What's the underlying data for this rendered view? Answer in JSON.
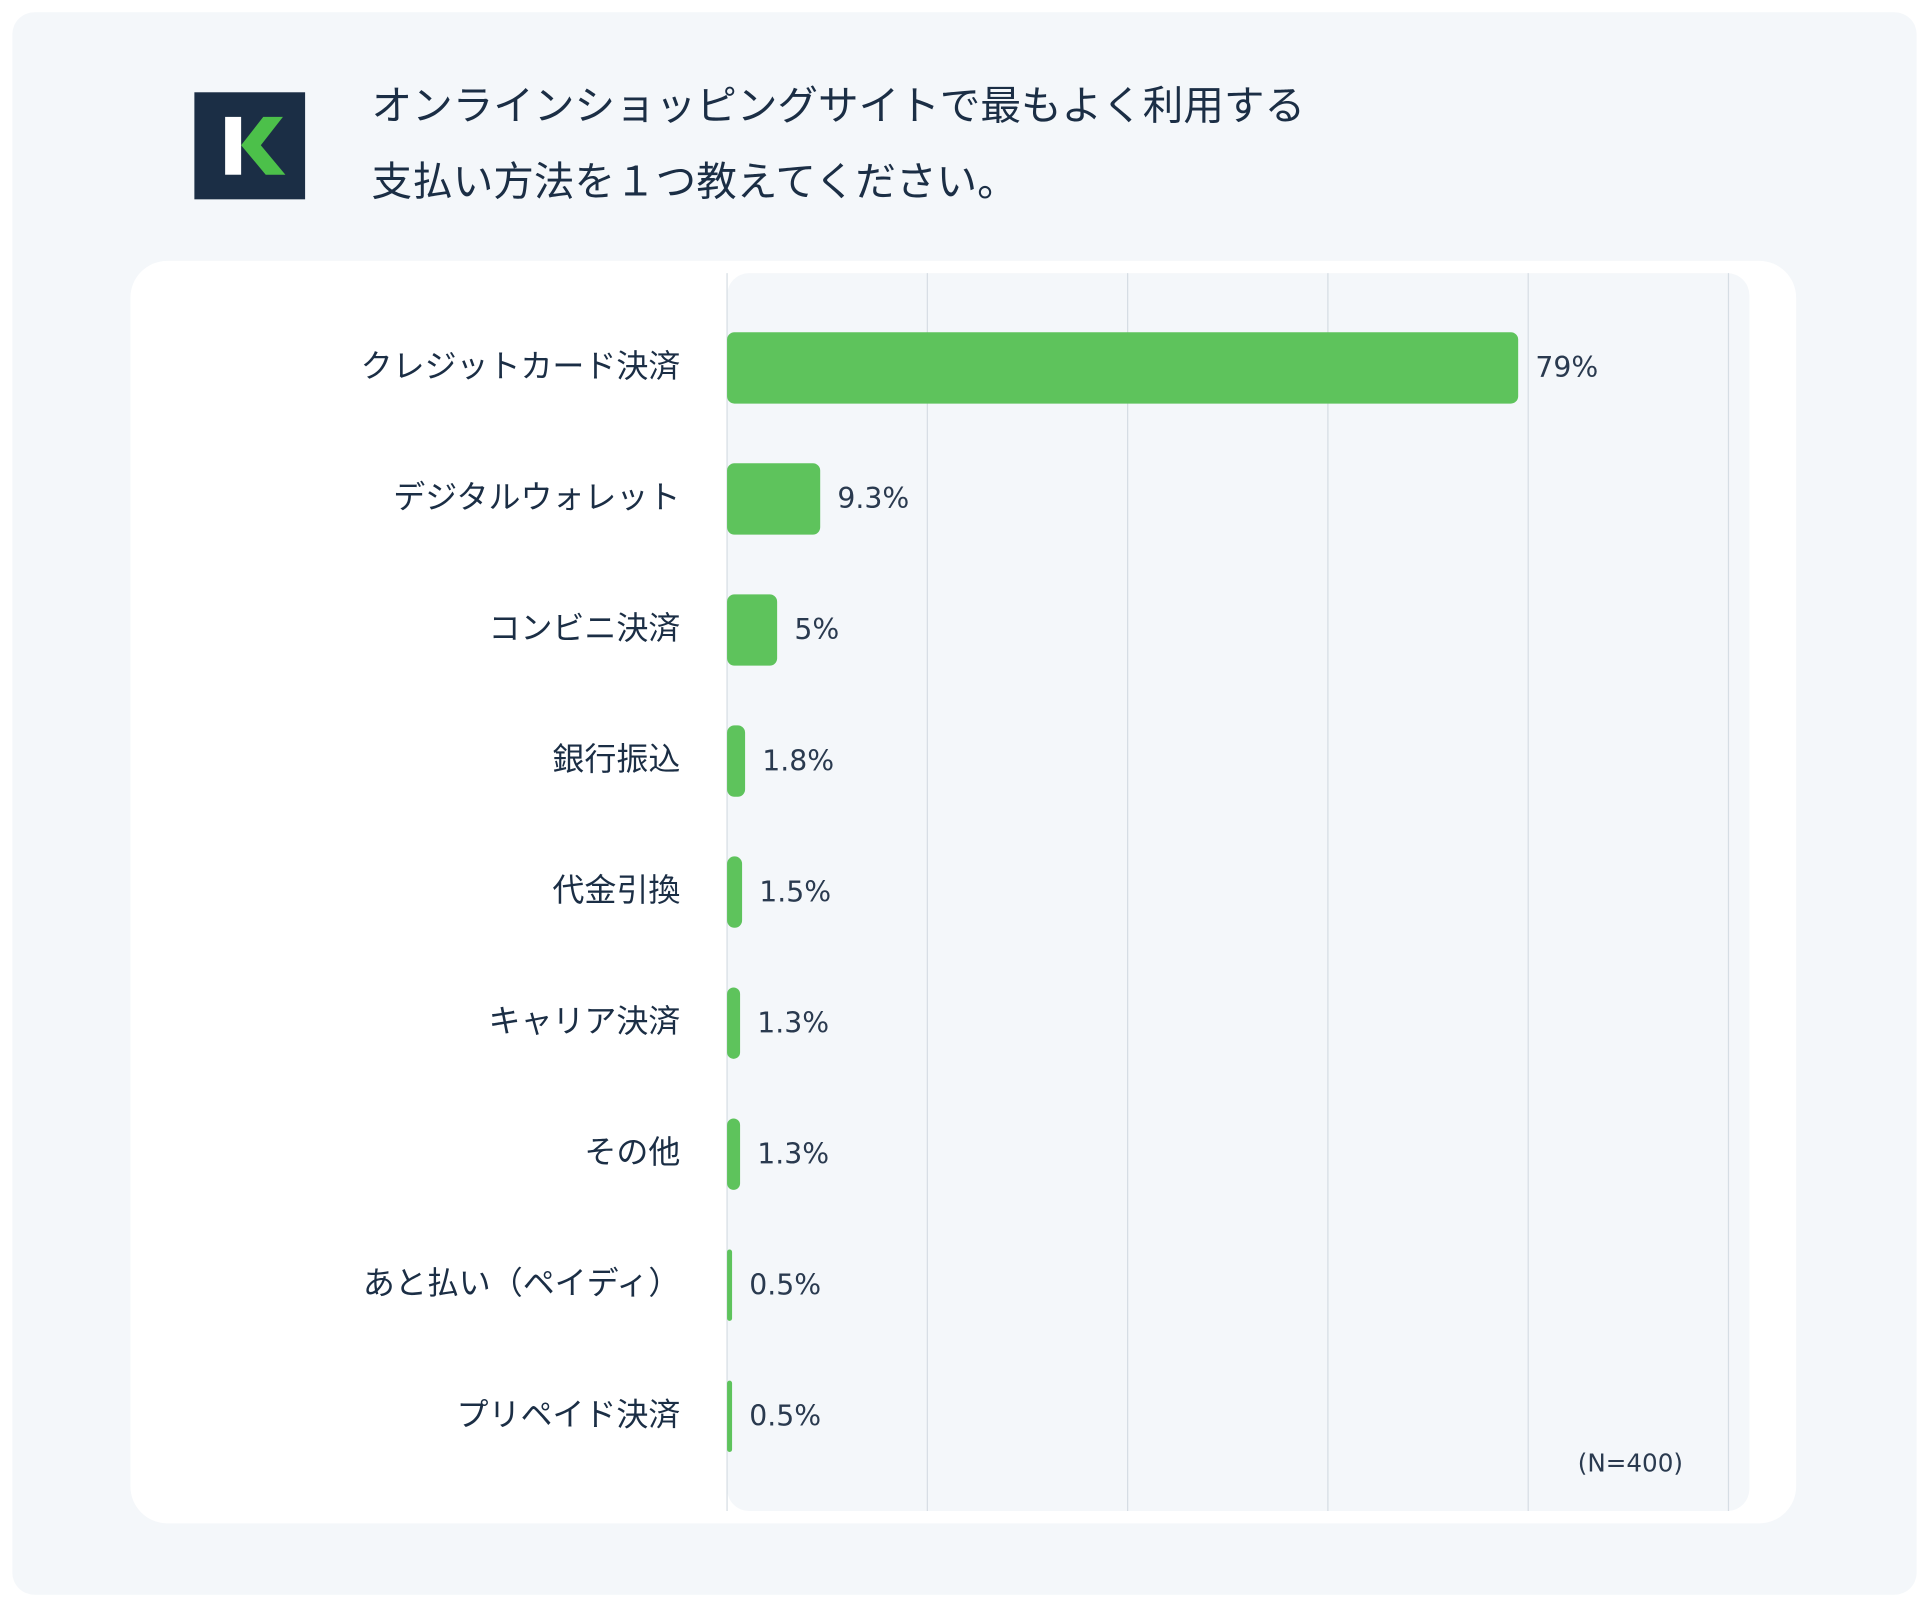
{
  "chart_data": {
    "type": "bar",
    "orientation": "horizontal",
    "title": [
      "オンラインショッピングサイトで最もよく利用する",
      "支払い方法を１つ教えてください。"
    ],
    "categories": [
      "クレジットカード決済",
      "デジタルウォレット",
      "コンビニ決済",
      "銀行振込",
      "代金引換",
      "キャリア決済",
      "その他",
      "あと払い（ペイディ）",
      "プリペイド決済"
    ],
    "values": [
      79,
      9.3,
      5,
      1.8,
      1.5,
      1.3,
      1.3,
      0.5,
      0.5
    ],
    "value_labels": [
      "79%",
      "9.3%",
      "5%",
      "1.8%",
      "1.5%",
      "1.3%",
      "1.3%",
      "0.5%",
      "0.5%"
    ],
    "color": "#5ec35c",
    "xlim": [
      0,
      100
    ],
    "xticks": [
      0,
      20,
      40,
      60,
      80,
      100
    ],
    "grid": true,
    "note": "(N=400)"
  }
}
